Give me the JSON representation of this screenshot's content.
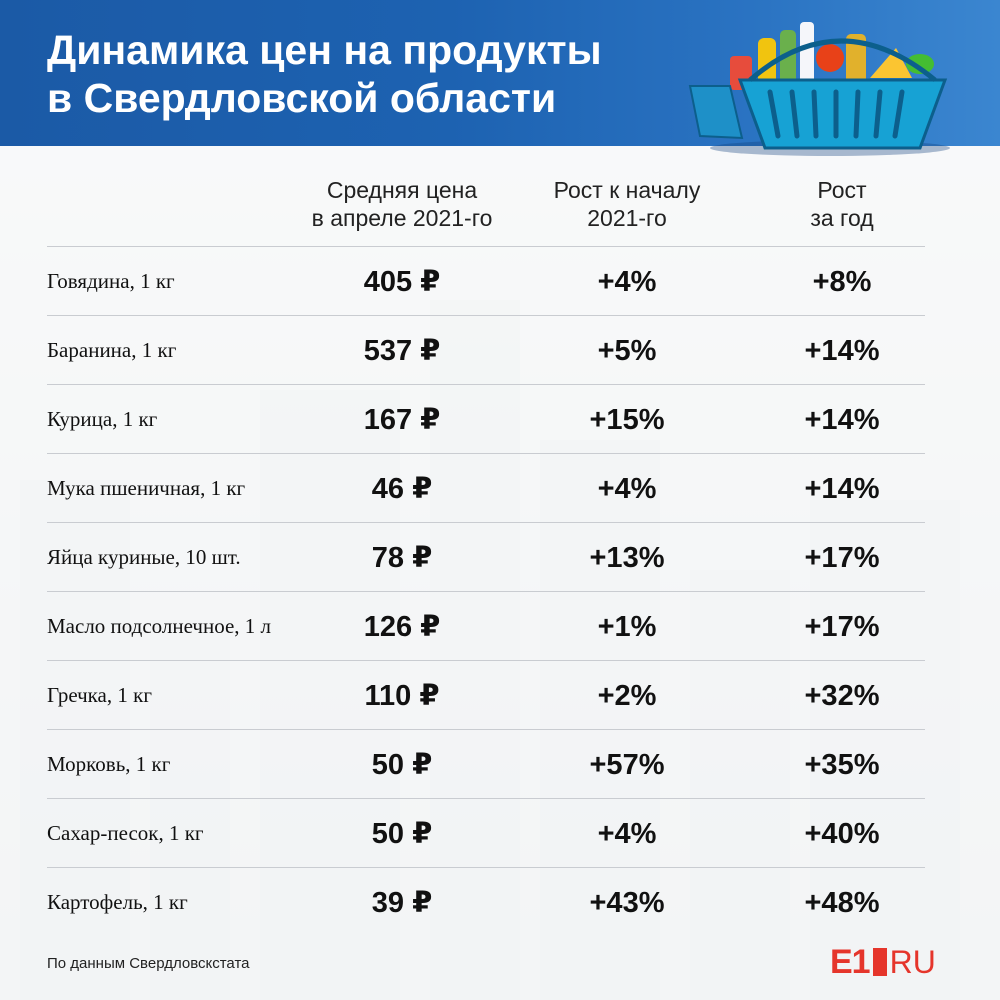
{
  "header": {
    "title_line1": "Динамика цен на продукты",
    "title_line2": "в Свердловской области"
  },
  "colors": {
    "header_blue": "#1d62b1",
    "logo_red": "#e5352b",
    "text": "#111111",
    "divider": "#c9ccd1"
  },
  "icons": [
    "grocery-basket-icon"
  ],
  "chart_data": {
    "type": "table",
    "columns": [
      {
        "key": "product",
        "label_line1": "",
        "label_line2": ""
      },
      {
        "key": "price",
        "label_line1": "Средняя цена",
        "label_line2": "в апреле 2021-го"
      },
      {
        "key": "growth_start",
        "label_line1": "Рост к началу",
        "label_line2": "2021-го"
      },
      {
        "key": "growth_year",
        "label_line1": "Рост",
        "label_line2": "за год"
      }
    ],
    "rows": [
      {
        "product": "Говядина, 1 кг",
        "price": "405 ₽",
        "growth_start": "+4%",
        "growth_year": "+8%"
      },
      {
        "product": "Баранина, 1 кг",
        "price": "537 ₽",
        "growth_start": "+5%",
        "growth_year": "+14%"
      },
      {
        "product": "Курица, 1 кг",
        "price": "167 ₽",
        "growth_start": "+15%",
        "growth_year": "+14%"
      },
      {
        "product": "Мука пшеничная, 1 кг",
        "price": "46 ₽",
        "growth_start": "+4%",
        "growth_year": "+14%"
      },
      {
        "product": "Яйца куриные, 10 шт.",
        "price": "78 ₽",
        "growth_start": "+13%",
        "growth_year": "+17%"
      },
      {
        "product": "Масло подсолнечное, 1 л",
        "price": "126 ₽",
        "growth_start": "+1%",
        "growth_year": "+17%"
      },
      {
        "product": "Гречка, 1 кг",
        "price": "110 ₽",
        "growth_start": "+2%",
        "growth_year": "+32%"
      },
      {
        "product": "Морковь, 1 кг",
        "price": "50 ₽",
        "growth_start": "+57%",
        "growth_year": "+35%"
      },
      {
        "product": "Сахар-песок, 1 кг",
        "price": "50 ₽",
        "growth_start": "+4%",
        "growth_year": "+40%"
      },
      {
        "product": "Картофель, 1 кг",
        "price": "39 ₽",
        "growth_start": "+43%",
        "growth_year": "+48%"
      }
    ]
  },
  "footer": {
    "source": "По данным Свердловскстата",
    "logo_e1": "E1",
    "logo_ru": "RU"
  }
}
